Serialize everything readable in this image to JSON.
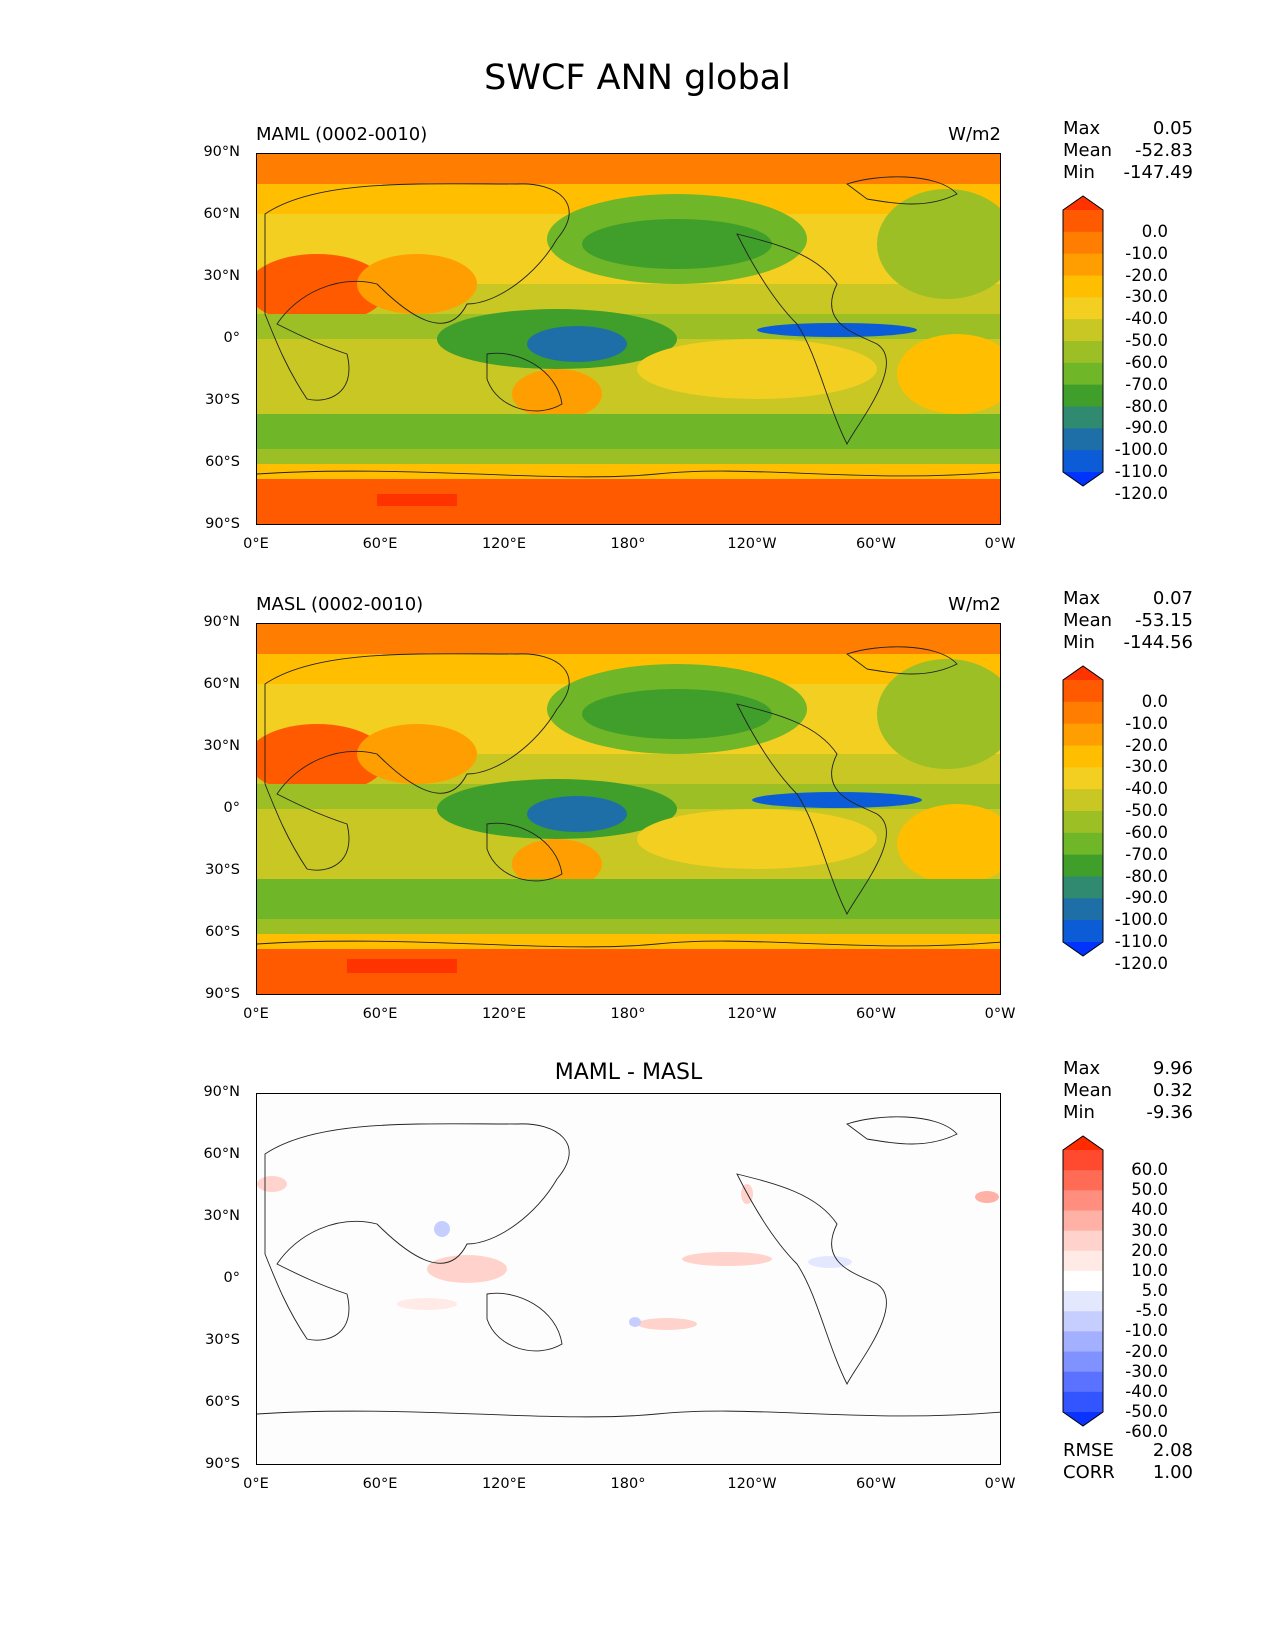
{
  "figure_title": "SWCF ANN global",
  "x_ticks": [
    "0°E",
    "60°E",
    "120°E",
    "180°",
    "120°W",
    "60°W",
    "0°W"
  ],
  "y_ticks": [
    "90°N",
    "60°N",
    "30°N",
    "0°",
    "30°S",
    "60°S",
    "90°S"
  ],
  "panels": [
    {
      "left_title": "MAML (0002-0010)",
      "right_title": "W/m2",
      "center_title": "",
      "stats": {
        "max_label": "Max",
        "max": "0.05",
        "mean_label": "Mean",
        "mean": "-52.83",
        "min_label": "Min",
        "min": "-147.49"
      },
      "colorbar_labels": [
        "0.0",
        "-10.0",
        "-20.0",
        "-30.0",
        "-40.0",
        "-50.0",
        "-60.0",
        "-70.0",
        "-80.0",
        "-90.0",
        "-100.0",
        "-110.0",
        "-120.0"
      ],
      "colorbar_colors": [
        "#ff3300",
        "#ff5a00",
        "#ff7d00",
        "#ff9e00",
        "#ffbf00",
        "#f2cf20",
        "#c8c724",
        "#9cbf25",
        "#6fb628",
        "#3f9f2a",
        "#2f8a70",
        "#1e6fa8",
        "#0b5cd6",
        "#0033ff"
      ]
    },
    {
      "left_title": "MASL (0002-0010)",
      "right_title": "W/m2",
      "center_title": "",
      "stats": {
        "max_label": "Max",
        "max": "0.07",
        "mean_label": "Mean",
        "mean": "-53.15",
        "min_label": "Min",
        "min": "-144.56"
      },
      "colorbar_labels": [
        "0.0",
        "-10.0",
        "-20.0",
        "-30.0",
        "-40.0",
        "-50.0",
        "-60.0",
        "-70.0",
        "-80.0",
        "-90.0",
        "-100.0",
        "-110.0",
        "-120.0"
      ],
      "colorbar_colors": [
        "#ff3300",
        "#ff5a00",
        "#ff7d00",
        "#ff9e00",
        "#ffbf00",
        "#f2cf20",
        "#c8c724",
        "#9cbf25",
        "#6fb628",
        "#3f9f2a",
        "#2f8a70",
        "#1e6fa8",
        "#0b5cd6",
        "#0033ff"
      ]
    },
    {
      "left_title": "",
      "right_title": "",
      "center_title": "MAML - MASL",
      "stats": {
        "max_label": "Max",
        "max": "9.96",
        "mean_label": "Mean",
        "mean": "0.32",
        "min_label": "Min",
        "min": "-9.36"
      },
      "colorbar_labels": [
        "60.0",
        "50.0",
        "40.0",
        "30.0",
        "20.0",
        "10.0",
        "5.0",
        "-5.0",
        "-10.0",
        "-20.0",
        "-30.0",
        "-40.0",
        "-50.0",
        "-60.0"
      ],
      "colorbar_colors": [
        "#ff2a00",
        "#ff4a30",
        "#ff6b55",
        "#ff8e7e",
        "#ffb1a6",
        "#ffd3cc",
        "#ffeae6",
        "#ffffff",
        "#e4e8ff",
        "#c6ceff",
        "#a3b0ff",
        "#8092ff",
        "#5a72ff",
        "#3355ff",
        "#0a33ff"
      ],
      "errors": {
        "rmse_label": "RMSE",
        "rmse": "2.08",
        "corr_label": "CORR",
        "corr": "1.00"
      }
    }
  ],
  "chart_data": {
    "type": "heatmap",
    "title": "SWCF ANN global",
    "xlim": [
      0,
      360
    ],
    "ylim": [
      -90,
      90
    ],
    "maps": [
      {
        "name": "MAML (0002-0010)",
        "units": "W/m2",
        "max": 0.05,
        "mean": -52.83,
        "min": -147.49,
        "levels": [
          -120,
          -110,
          -100,
          -90,
          -80,
          -70,
          -60,
          -50,
          -40,
          -30,
          -20,
          -10,
          0
        ]
      },
      {
        "name": "MASL (0002-0010)",
        "units": "W/m2",
        "max": 0.07,
        "mean": -53.15,
        "min": -144.56,
        "levels": [
          -120,
          -110,
          -100,
          -90,
          -80,
          -70,
          -60,
          -50,
          -40,
          -30,
          -20,
          -10,
          0
        ]
      },
      {
        "name": "MAML - MASL",
        "max": 9.96,
        "mean": 0.32,
        "min": -9.36,
        "rmse": 2.08,
        "corr": 1.0,
        "levels": [
          -60,
          -50,
          -40,
          -30,
          -20,
          -10,
          -5,
          5,
          10,
          20,
          30,
          40,
          50,
          60
        ]
      }
    ]
  }
}
